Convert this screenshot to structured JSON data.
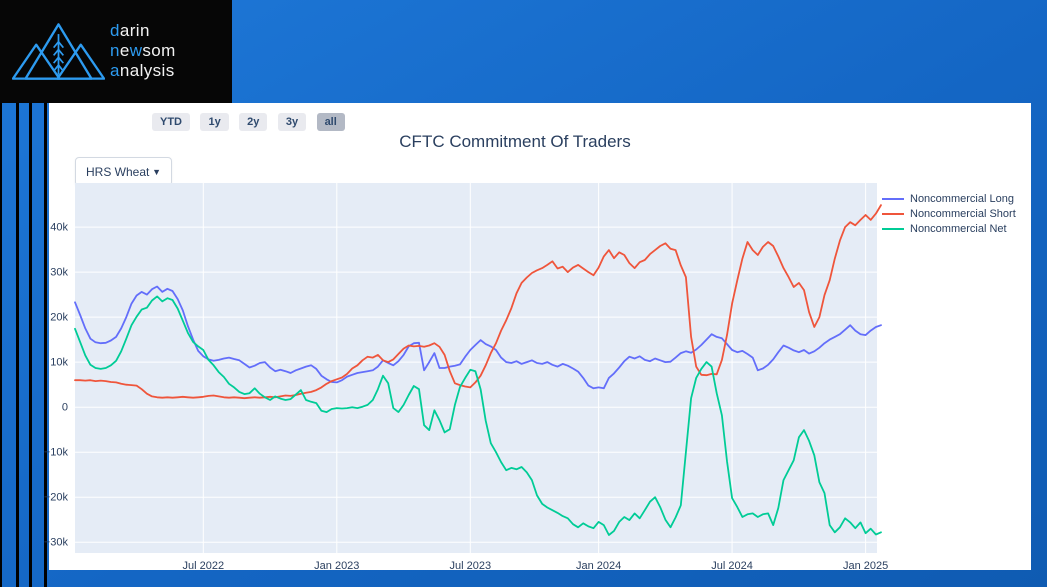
{
  "brand": {
    "line1_accent": "d",
    "line1_rest": "arin",
    "line2_a": "n",
    "line2_b": "e",
    "line2_c": "w",
    "line2_d": "som",
    "line3_accent": "a",
    "line3_rest": "nalysis",
    "accent_color": "#2d9bf0"
  },
  "toolbar": {
    "buttons": [
      {
        "label": "YTD",
        "active": false
      },
      {
        "label": "1y",
        "active": false
      },
      {
        "label": "2y",
        "active": false
      },
      {
        "label": "3y",
        "active": false
      },
      {
        "label": "all",
        "active": true
      }
    ]
  },
  "controls": {
    "commodity_selector": {
      "value": "HRS Wheat"
    }
  },
  "chart": {
    "title": "CFTC Commitment Of Traders"
  },
  "chart_data": {
    "type": "line",
    "title": "CFTC Commitment Of Traders",
    "x_unit": "weekly observations, Jan 2022 - Feb 2025",
    "x_count": 158,
    "ylim": [
      -32.4,
      49.8
    ],
    "y_unit": "contracts (thousands)",
    "plot_bg": "#e5ecf6",
    "grid_color": "#ffffff",
    "grid": true,
    "legend_position": "top-right-outside",
    "x_ticks": [
      {
        "index": 25,
        "label": "Jul 2022"
      },
      {
        "index": 51,
        "label": "Jan 2023"
      },
      {
        "index": 77,
        "label": "Jul 2023"
      },
      {
        "index": 102,
        "label": "Jan 2024"
      },
      {
        "index": 128,
        "label": "Jul 2024"
      },
      {
        "index": 154,
        "label": "Jan 2025"
      }
    ],
    "y_ticks": [
      {
        "value": 40,
        "label": "40k"
      },
      {
        "value": 30,
        "label": "30k"
      },
      {
        "value": 20,
        "label": "20k"
      },
      {
        "value": 10,
        "label": "10k"
      },
      {
        "value": 0,
        "label": "0"
      },
      {
        "value": -10,
        "label": "−10k"
      },
      {
        "value": -20,
        "label": "−20k"
      },
      {
        "value": -30,
        "label": "−30k"
      }
    ],
    "series": [
      {
        "name": "Noncommercial Long",
        "color": "#636efa",
        "values": [
          23.3,
          20.5,
          17.5,
          15.2,
          14.4,
          14.2,
          14.3,
          14.8,
          15.6,
          17.5,
          20.0,
          23.0,
          24.8,
          25.6,
          25.0,
          26.2,
          26.8,
          25.6,
          26.3,
          25.8,
          24.0,
          21.5,
          18.0,
          15.0,
          12.5,
          11.3,
          10.6,
          10.3,
          10.5,
          10.8,
          11.0,
          10.7,
          10.4,
          9.6,
          8.8,
          9.2,
          9.8,
          10.0,
          8.8,
          8.0,
          8.3,
          8.0,
          7.6,
          8.2,
          8.6,
          9.0,
          9.3,
          8.5,
          7.0,
          6.2,
          5.6,
          5.5,
          6.0,
          6.8,
          7.2,
          7.6,
          7.8,
          8.0,
          8.2,
          9.0,
          10.4,
          9.8,
          9.3,
          10.2,
          11.6,
          13.5,
          14.2,
          14.3,
          8.2,
          10.0,
          12.0,
          8.7,
          8.7,
          9.0,
          9.2,
          9.5,
          11.2,
          12.7,
          13.8,
          14.9,
          14.0,
          13.5,
          12.7,
          11.0,
          10.0,
          9.8,
          10.2,
          9.6,
          10.0,
          10.4,
          9.8,
          9.6,
          10.0,
          9.4,
          9.0,
          9.6,
          9.2,
          8.6,
          7.9,
          6.5,
          4.8,
          4.2,
          4.4,
          4.2,
          6.5,
          7.5,
          8.8,
          10.2,
          11.2,
          10.8,
          11.3,
          10.5,
          10.2,
          10.8,
          10.4,
          10.0,
          10.1,
          11.0,
          12.0,
          12.4,
          12.1,
          12.8,
          13.8,
          15.0,
          16.2,
          15.6,
          15.3,
          14.0,
          12.7,
          12.2,
          12.5,
          11.8,
          11.0,
          8.2,
          8.6,
          9.4,
          10.6,
          12.2,
          13.7,
          13.2,
          12.6,
          12.2,
          12.7,
          11.9,
          12.4,
          13.2,
          14.2,
          15.0,
          15.6,
          16.2,
          17.2,
          18.2,
          17.0,
          16.2,
          16.0,
          17.0,
          17.8,
          18.2
        ]
      },
      {
        "name": "Noncommercial Short",
        "color": "#ef553b",
        "values": [
          6.0,
          6.0,
          5.9,
          6.0,
          5.8,
          5.9,
          5.8,
          5.6,
          5.5,
          5.2,
          5.0,
          4.9,
          4.8,
          4.0,
          3.0,
          2.4,
          2.2,
          2.1,
          2.2,
          2.1,
          2.2,
          2.3,
          2.2,
          2.1,
          2.2,
          2.3,
          2.5,
          2.6,
          2.4,
          2.2,
          2.1,
          2.2,
          2.1,
          2.0,
          2.1,
          2.2,
          2.1,
          2.2,
          2.3,
          2.2,
          2.4,
          2.6,
          2.5,
          2.7,
          3.0,
          3.2,
          3.4,
          3.8,
          4.4,
          5.2,
          5.8,
          6.2,
          6.6,
          7.4,
          8.6,
          9.3,
          10.4,
          11.2,
          11.0,
          11.6,
          10.4,
          10.0,
          10.6,
          11.8,
          13.0,
          13.7,
          13.5,
          13.6,
          13.4,
          13.7,
          14.2,
          13.4,
          11.6,
          8.0,
          5.3,
          4.9,
          4.6,
          4.4,
          5.5,
          7.0,
          9.3,
          12.0,
          14.2,
          17.0,
          19.3,
          22.0,
          25.3,
          27.6,
          28.8,
          29.8,
          30.4,
          30.9,
          31.6,
          32.4,
          30.8,
          31.2,
          30.0,
          31.0,
          31.6,
          30.8,
          30.0,
          29.3,
          31.0,
          33.5,
          34.9,
          33.1,
          34.4,
          33.8,
          32.0,
          30.9,
          32.2,
          32.7,
          34.0,
          34.9,
          35.8,
          36.4,
          35.2,
          34.9,
          31.5,
          28.9,
          15.6,
          9.0,
          7.2,
          7.1,
          7.4,
          7.3,
          10.5,
          16.0,
          23.0,
          28.2,
          33.0,
          36.7,
          34.9,
          33.8,
          35.6,
          36.7,
          35.8,
          33.5,
          30.9,
          28.9,
          26.7,
          27.6,
          26.0,
          21.1,
          17.8,
          20.0,
          24.9,
          28.2,
          33.0,
          37.0,
          40.0,
          41.1,
          40.4,
          41.6,
          42.7,
          41.6,
          43.0,
          44.9
        ]
      },
      {
        "name": "Noncommercial Net",
        "color": "#00cc96",
        "values": [
          17.4,
          14.5,
          11.5,
          9.4,
          8.7,
          8.5,
          8.7,
          9.3,
          10.3,
          12.4,
          15.2,
          18.2,
          20.1,
          21.7,
          22.1,
          23.7,
          24.6,
          23.5,
          24.2,
          23.8,
          21.9,
          19.2,
          16.5,
          14.5,
          13.5,
          12.7,
          10.5,
          9.3,
          7.8,
          6.7,
          5.2,
          4.4,
          3.4,
          2.9,
          3.1,
          4.2,
          3.0,
          2.2,
          1.6,
          2.4,
          1.9,
          1.6,
          1.8,
          2.8,
          3.8,
          1.6,
          1.2,
          0.9,
          -0.8,
          -1.1,
          -0.4,
          -0.2,
          -0.3,
          -0.2,
          0.0,
          -0.2,
          0.1,
          0.5,
          1.6,
          4.0,
          7.0,
          5.3,
          -0.2,
          -1.1,
          0.5,
          2.7,
          4.7,
          4.0,
          -4.0,
          -5.1,
          -0.7,
          -2.9,
          -5.6,
          -4.9,
          0.5,
          4.5,
          6.5,
          8.3,
          8.0,
          4.0,
          -3.0,
          -8.0,
          -10.0,
          -12.2,
          -14.0,
          -13.5,
          -13.8,
          -13.3,
          -14.5,
          -16.2,
          -19.6,
          -21.5,
          -22.3,
          -22.9,
          -23.5,
          -24.2,
          -24.7,
          -26.0,
          -26.7,
          -25.8,
          -26.5,
          -26.9,
          -25.5,
          -26.2,
          -28.4,
          -27.5,
          -25.5,
          -24.4,
          -25.1,
          -23.6,
          -24.7,
          -22.9,
          -21.0,
          -20.0,
          -22.2,
          -25.0,
          -26.7,
          -24.5,
          -21.8,
          -10.0,
          2.0,
          6.5,
          8.5,
          10.0,
          9.0,
          3.1,
          -1.8,
          -12.0,
          -20.2,
          -22.2,
          -24.4,
          -23.8,
          -23.6,
          -24.4,
          -23.8,
          -23.6,
          -26.2,
          -22.4,
          -16.2,
          -14.0,
          -11.8,
          -6.7,
          -5.1,
          -7.5,
          -10.7,
          -16.7,
          -19.1,
          -26.2,
          -27.8,
          -26.7,
          -24.7,
          -25.6,
          -26.9,
          -25.6,
          -28.0,
          -27.0,
          -28.3,
          -27.8
        ]
      }
    ]
  }
}
